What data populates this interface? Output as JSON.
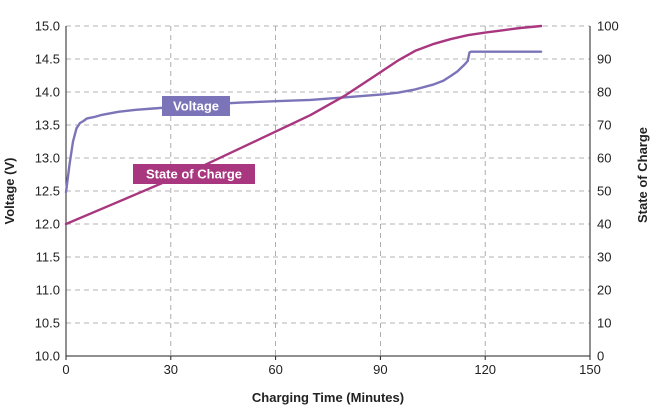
{
  "chart_data": {
    "type": "line",
    "xlabel": "Charging Time (Minutes)",
    "ylabel_left": "Voltage (V)",
    "ylabel_right": "State of Charge",
    "x_ticks": [
      "0",
      "30",
      "60",
      "90",
      "120",
      "150"
    ],
    "y_left_ticks": [
      "10.0",
      "10.5",
      "11.0",
      "11.5",
      "12.0",
      "12.5",
      "13.0",
      "13.5",
      "14.0",
      "14.5",
      "15.0"
    ],
    "y_right_ticks": [
      "0",
      "10",
      "20",
      "30",
      "40",
      "50",
      "60",
      "70",
      "80",
      "90",
      "100"
    ],
    "xlim": [
      0,
      150
    ],
    "ylim_left": [
      10.0,
      15.0
    ],
    "ylim_right": [
      0,
      100
    ],
    "grid": "dashed",
    "series": [
      {
        "name": "Voltage",
        "axis": "left",
        "color": "#7b74b8",
        "x": [
          0,
          1,
          2,
          3,
          4,
          5,
          6,
          8,
          10,
          15,
          20,
          25,
          30,
          40,
          50,
          60,
          70,
          80,
          90,
          95,
          100,
          105,
          108,
          110,
          112,
          114,
          115,
          115.5,
          116,
          120,
          125,
          130,
          136
        ],
        "y": [
          12.48,
          12.9,
          13.25,
          13.45,
          13.53,
          13.56,
          13.6,
          13.62,
          13.65,
          13.7,
          13.73,
          13.75,
          13.77,
          13.81,
          13.84,
          13.86,
          13.88,
          13.92,
          13.96,
          13.99,
          14.04,
          14.11,
          14.17,
          14.24,
          14.31,
          14.41,
          14.47,
          14.6,
          14.61,
          14.61,
          14.61,
          14.61,
          14.61
        ]
      },
      {
        "name": "State of Charge",
        "axis": "right",
        "color": "#a8377f",
        "x": [
          0,
          10,
          20,
          30,
          40,
          50,
          60,
          70,
          80,
          90,
          95,
          100,
          105,
          110,
          115,
          120,
          125,
          130,
          136
        ],
        "y": [
          40,
          44.5,
          49,
          53.5,
          58,
          63,
          68,
          73,
          79,
          86,
          89.5,
          92.5,
          94.5,
          96,
          97.2,
          98,
          98.7,
          99.4,
          100
        ]
      }
    ],
    "annotations": [
      "Voltage",
      "State of Charge"
    ]
  }
}
